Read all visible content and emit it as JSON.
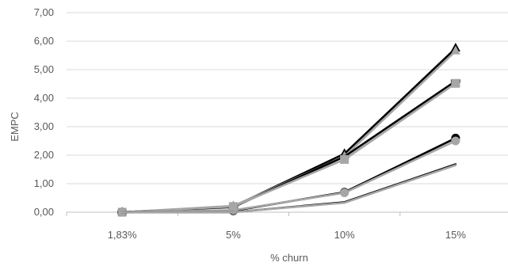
{
  "chart_data": {
    "type": "line",
    "title": "",
    "xlabel": "% churn",
    "ylabel": "EMPC",
    "categories": [
      "1,83%",
      "5%",
      "10%",
      "15%"
    ],
    "ylim": [
      0,
      7
    ],
    "yticks": [
      "0,00",
      "1,00",
      "2,00",
      "3,00",
      "4,00",
      "5,00",
      "6,00",
      "7,00"
    ],
    "grid": true,
    "legend": "none",
    "series": [
      {
        "values": [
          0.0,
          0.2,
          2.05,
          5.75
        ],
        "color": "#000000",
        "marker": "triangle"
      },
      {
        "values": [
          0.0,
          0.22,
          1.95,
          5.65
        ],
        "color": "#a6a6a6",
        "marker": "triangle"
      },
      {
        "values": [
          0.0,
          0.18,
          1.95,
          4.6
        ],
        "color": "#000000",
        "marker": "dash"
      },
      {
        "values": [
          0.0,
          0.2,
          1.85,
          4.52
        ],
        "color": "#a6a6a6",
        "marker": "square"
      },
      {
        "values": [
          0.0,
          0.05,
          0.7,
          2.6
        ],
        "color": "#000000",
        "marker": "circle"
      },
      {
        "values": [
          0.0,
          0.07,
          0.68,
          2.5
        ],
        "color": "#a6a6a6",
        "marker": "circle"
      },
      {
        "values": [
          0.0,
          0.0,
          0.35,
          1.68
        ],
        "color": "#000000",
        "marker": "none"
      },
      {
        "values": [
          0.0,
          0.0,
          0.33,
          1.65
        ],
        "color": "#a6a6a6",
        "marker": "none"
      }
    ]
  }
}
